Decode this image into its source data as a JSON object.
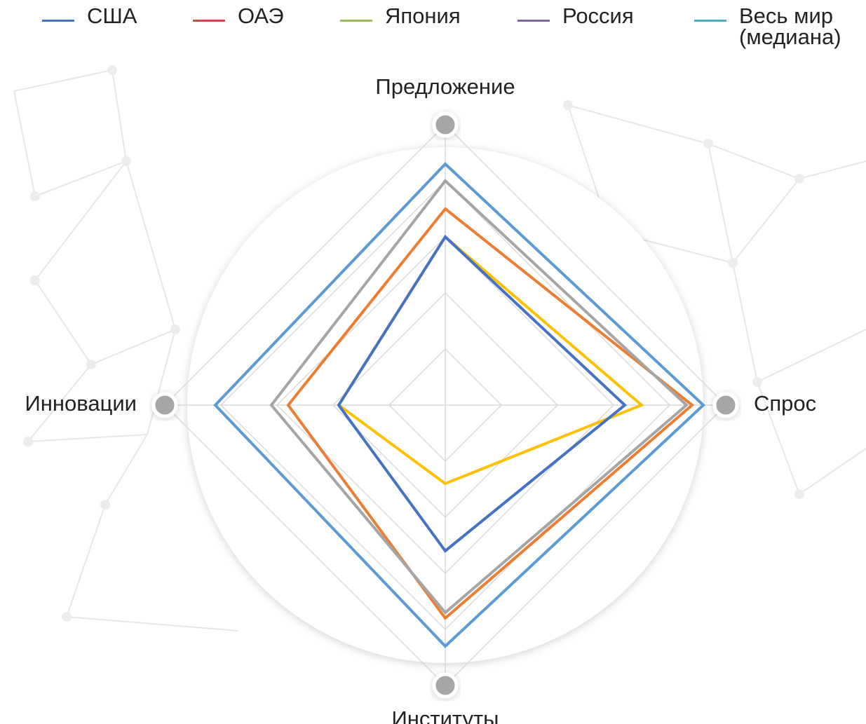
{
  "chart_data": {
    "type": "radar",
    "axes": [
      "Предложение",
      "Спрос",
      "Институты",
      "Инновации"
    ],
    "rlim": [
      0,
      5
    ],
    "rticks": [
      1,
      2,
      3,
      4,
      5
    ],
    "grid": true,
    "legend": "top",
    "series": [
      {
        "name": "США",
        "color": "#5b9bd5",
        "legend_color": "#4472c4",
        "values": [
          4.3,
          4.6,
          4.3,
          4.1
        ]
      },
      {
        "name": "ОАЭ",
        "color": "#ed7d31",
        "legend_color": "#c0504d",
        "values": [
          3.5,
          4.4,
          3.8,
          2.8
        ]
      },
      {
        "name": "Япония",
        "color": "#a5a5a5",
        "legend_color": "#9bbb59",
        "values": [
          4.0,
          4.3,
          3.7,
          3.1
        ]
      },
      {
        "name": "Россия",
        "color": "#ffc000",
        "legend_color": "#8064a2",
        "values": [
          3.0,
          3.5,
          1.4,
          1.9
        ]
      },
      {
        "name": "Весь мир\n(медиана)",
        "color": "#4472c4",
        "legend_color": "#4bacc6",
        "values": [
          3.0,
          3.2,
          2.6,
          1.9
        ]
      }
    ]
  }
}
